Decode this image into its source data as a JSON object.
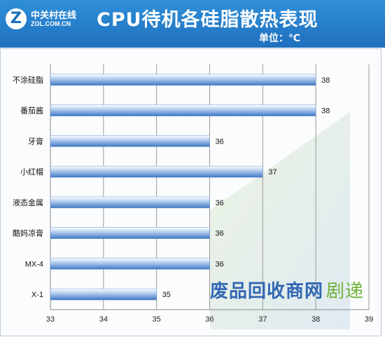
{
  "header": {
    "logo_mark": "Z",
    "logo_cn": "中关村在线",
    "logo_en": "ZOL.COM.CN",
    "title": "CPU待机各硅脂散热表现",
    "unit": "单位：℃"
  },
  "chart_data": {
    "type": "bar",
    "orientation": "horizontal",
    "title": "CPU待机各硅脂散热表现",
    "unit": "单位：℃",
    "categories": [
      "不涂硅脂",
      "番茄酱",
      "牙膏",
      "小红帽",
      "液态金属",
      "酷妈凉膏",
      "MX-4",
      "X-1"
    ],
    "values": [
      38,
      38,
      36,
      37,
      36,
      36,
      36,
      35
    ],
    "xlim": [
      33,
      39
    ],
    "x_ticks": [
      "33",
      "34",
      "35",
      "36",
      "37",
      "38",
      "39"
    ],
    "grid": true,
    "data_labels": true,
    "bar_color": "#5b8fd0"
  },
  "watermark": {
    "main": "废品回收商网",
    "sub": "剧递"
  }
}
